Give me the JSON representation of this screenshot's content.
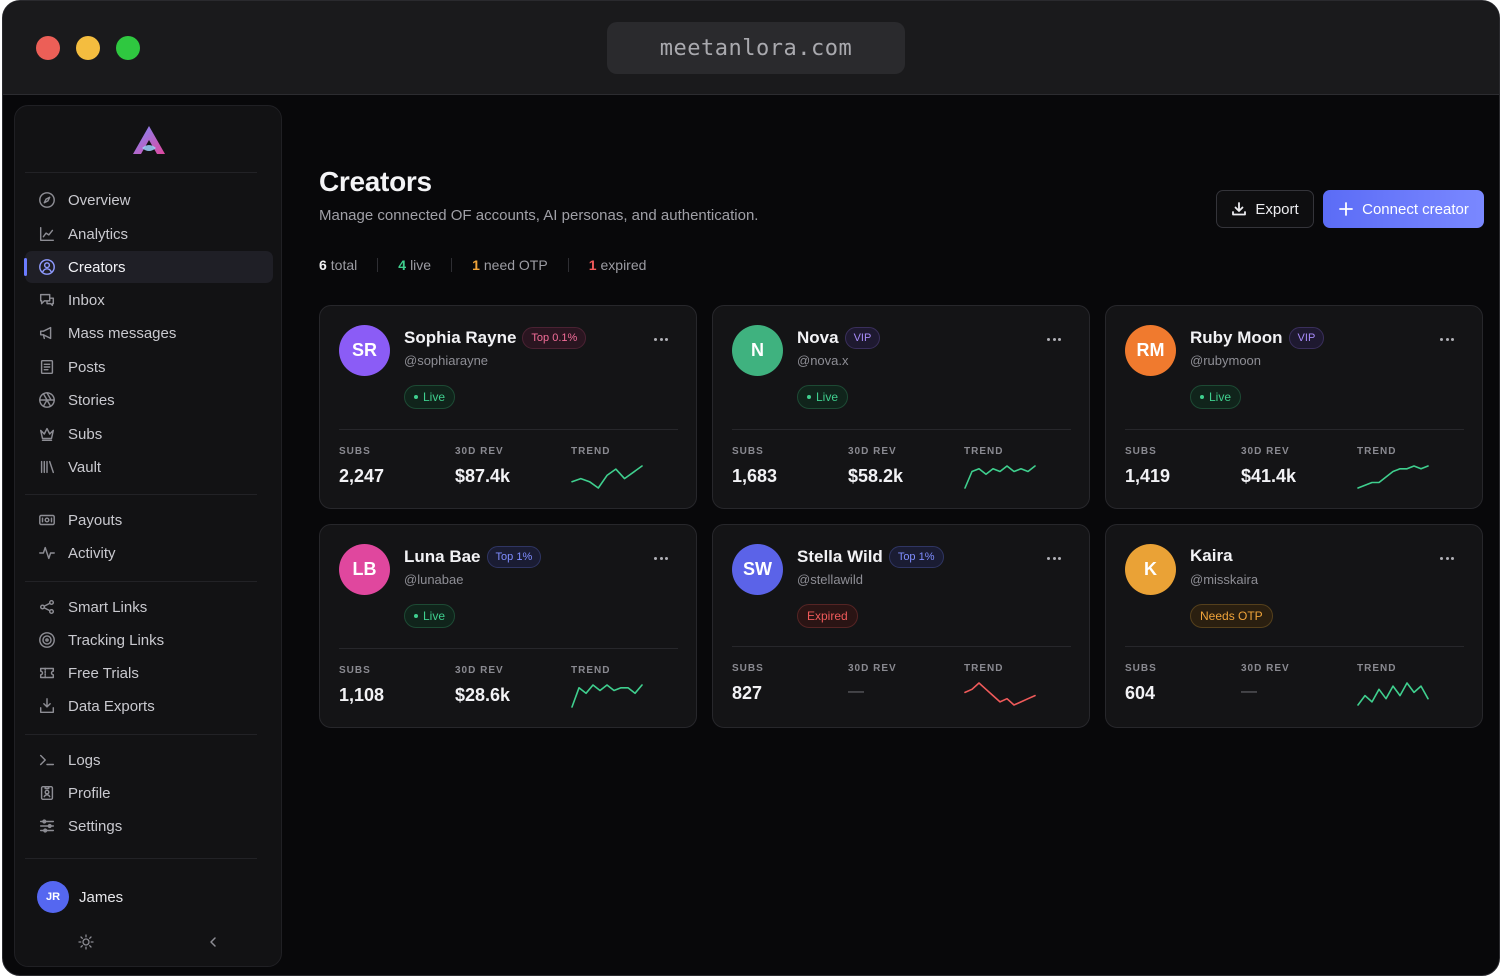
{
  "browser": {
    "url": "meetanlora.com"
  },
  "sidebar": {
    "groups": [
      [
        {
          "label": "Overview",
          "icon": "compass-icon"
        },
        {
          "label": "Analytics",
          "icon": "chart-line-icon"
        },
        {
          "label": "Creators",
          "icon": "user-circle-icon",
          "active": true
        },
        {
          "label": "Inbox",
          "icon": "chat-icon"
        },
        {
          "label": "Mass messages",
          "icon": "megaphone-icon"
        },
        {
          "label": "Posts",
          "icon": "newspaper-icon"
        },
        {
          "label": "Stories",
          "icon": "aperture-icon"
        },
        {
          "label": "Subs",
          "icon": "crown-icon"
        },
        {
          "label": "Vault",
          "icon": "library-icon"
        }
      ],
      [
        {
          "label": "Payouts",
          "icon": "cash-icon"
        },
        {
          "label": "Activity",
          "icon": "pulse-icon"
        }
      ],
      [
        {
          "label": "Smart Links",
          "icon": "share-nodes-icon"
        },
        {
          "label": "Tracking Links",
          "icon": "target-icon"
        },
        {
          "label": "Free Trials",
          "icon": "ticket-icon"
        },
        {
          "label": "Data Exports",
          "icon": "download-tray-icon"
        }
      ],
      [
        {
          "label": "Logs",
          "icon": "terminal-icon"
        },
        {
          "label": "Profile",
          "icon": "id-badge-icon"
        },
        {
          "label": "Settings",
          "icon": "sliders-icon"
        }
      ]
    ],
    "user": {
      "initials": "JR",
      "name": "James"
    }
  },
  "header": {
    "title": "Creators",
    "subtitle": "Manage connected OF accounts, AI personas, and authentication.",
    "export_label": "Export",
    "connect_label": "Connect creator"
  },
  "stats": {
    "total": {
      "value": "6",
      "label": "total"
    },
    "live": {
      "value": "4",
      "label": "live"
    },
    "otp": {
      "value": "1",
      "label": "need OTP"
    },
    "expired": {
      "value": "1",
      "label": "expired"
    }
  },
  "metric_labels": {
    "subs": "SUBS",
    "rev": "30D REV",
    "trend": "TREND"
  },
  "colors": {
    "accent": "#5b6cf6",
    "live": "#3fcf8e",
    "expired": "#ef5a5a",
    "otp": "#f0a43a"
  },
  "creators": [
    {
      "initials": "SR",
      "avatar_color": "#8b5cf6",
      "name": "Sophia Rayne",
      "badge": "Top 0.1%",
      "badge_kind": "top01",
      "handle": "@sophiarayne",
      "status": "Live",
      "status_kind": "live",
      "subs": "2,247",
      "revenue": "$87.4k",
      "trend": [
        5,
        6,
        5,
        3,
        7,
        9,
        6,
        8,
        10
      ],
      "trend_color": "#3fcf8e"
    },
    {
      "initials": "N",
      "avatar_color": "#3fb27f",
      "name": "Nova",
      "badge": "VIP",
      "badge_kind": "vip",
      "handle": "@nova.x",
      "status": "Live",
      "status_kind": "live",
      "subs": "1,683",
      "revenue": "$58.2k",
      "trend": [
        2,
        8,
        9,
        7,
        9,
        8,
        10,
        8,
        9,
        8,
        10
      ],
      "trend_color": "#3fcf8e"
    },
    {
      "initials": "RM",
      "avatar_color": "#f07a2e",
      "name": "Ruby Moon",
      "badge": "VIP",
      "badge_kind": "vip",
      "handle": "@rubymoon",
      "status": "Live",
      "status_kind": "live",
      "subs": "1,419",
      "revenue": "$41.4k",
      "trend": [
        2,
        3,
        4,
        4,
        6,
        8,
        9,
        9,
        10,
        9,
        10
      ],
      "trend_color": "#3fcf8e"
    },
    {
      "initials": "LB",
      "avatar_color": "#e0479e",
      "name": "Luna Bae",
      "badge": "Top 1%",
      "badge_kind": "top1",
      "handle": "@lunabae",
      "status": "Live",
      "status_kind": "live",
      "subs": "1,108",
      "revenue": "$28.6k",
      "trend": [
        2,
        9,
        7,
        10,
        8,
        10,
        8,
        9,
        9,
        7,
        10
      ],
      "trend_color": "#3fcf8e"
    },
    {
      "initials": "SW",
      "avatar_color": "#5b63e8",
      "name": "Stella Wild",
      "badge": "Top 1%",
      "badge_kind": "top1",
      "handle": "@stellawild",
      "status": "Expired",
      "status_kind": "expired",
      "subs": "827",
      "revenue": "—",
      "trend": [
        7,
        8,
        10,
        8,
        6,
        4,
        5,
        3,
        4,
        5,
        6
      ],
      "trend_color": "#ef5a5a"
    },
    {
      "initials": "K",
      "avatar_color": "#eaa236",
      "name": "Kaira",
      "badge": "",
      "badge_kind": "",
      "handle": "@misskaira",
      "status": "Needs OTP",
      "status_kind": "otp",
      "subs": "604",
      "revenue": "—",
      "trend": [
        3,
        6,
        4,
        8,
        5,
        9,
        6,
        10,
        7,
        9,
        5
      ],
      "trend_color": "#3fcf8e"
    }
  ]
}
